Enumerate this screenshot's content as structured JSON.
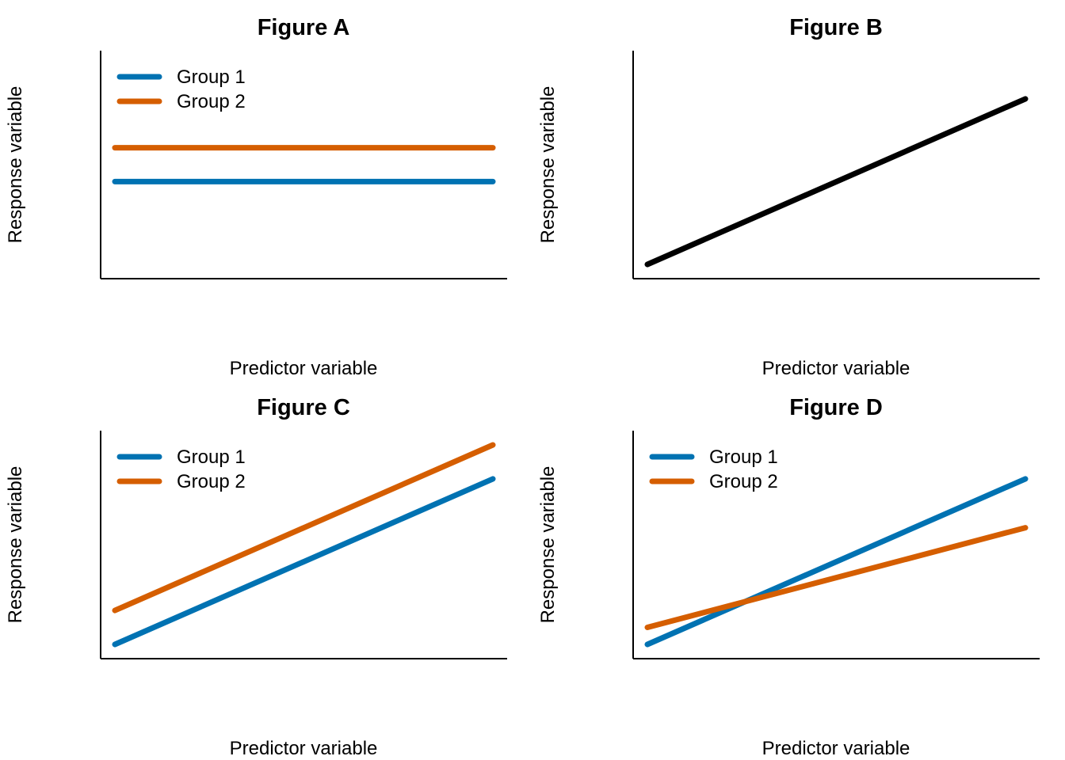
{
  "figure": {
    "colors": {
      "group1": "#0072B2",
      "group2": "#D55E00",
      "single": "#000000",
      "axis": "#000000"
    }
  },
  "chart_data": [
    {
      "type": "line",
      "title": "Figure A",
      "xlabel": "Predictor variable",
      "ylabel": "Response variable",
      "xlim": [
        0,
        1
      ],
      "ylim": [
        0,
        1
      ],
      "grid": false,
      "axis_ticks": false,
      "legend": {
        "placement": "top-left",
        "entries": [
          "Group 1",
          "Group 2"
        ]
      },
      "series": [
        {
          "name": "Group 1",
          "color": "#0072B2",
          "x": [
            0,
            1
          ],
          "y": [
            0.42,
            0.42
          ]
        },
        {
          "name": "Group 2",
          "color": "#D55E00",
          "x": [
            0,
            1
          ],
          "y": [
            0.58,
            0.58
          ]
        }
      ]
    },
    {
      "type": "line",
      "title": "Figure B",
      "xlabel": "Predictor variable",
      "ylabel": "Response variable",
      "xlim": [
        0,
        1
      ],
      "ylim": [
        0,
        1
      ],
      "grid": false,
      "axis_ticks": false,
      "series": [
        {
          "color": "#000000",
          "x": [
            0,
            1
          ],
          "y": [
            0.03,
            0.81
          ]
        }
      ]
    },
    {
      "type": "line",
      "title": "Figure C",
      "xlabel": "Predictor variable",
      "ylabel": "Response variable",
      "xlim": [
        0,
        1
      ],
      "ylim": [
        0,
        1
      ],
      "grid": false,
      "axis_ticks": false,
      "legend": {
        "placement": "top-left",
        "entries": [
          "Group 1",
          "Group 2"
        ]
      },
      "series": [
        {
          "name": "Group 1",
          "color": "#0072B2",
          "x": [
            0,
            1
          ],
          "y": [
            0.03,
            0.81
          ]
        },
        {
          "name": "Group 2",
          "color": "#D55E00",
          "x": [
            0,
            1
          ],
          "y": [
            0.19,
            0.97
          ]
        }
      ]
    },
    {
      "type": "line",
      "title": "Figure D",
      "xlabel": "Predictor variable",
      "ylabel": "Response variable",
      "xlim": [
        0,
        1
      ],
      "ylim": [
        0,
        1
      ],
      "grid": false,
      "axis_ticks": false,
      "legend": {
        "placement": "top-left",
        "entries": [
          "Group 1",
          "Group 2"
        ]
      },
      "series": [
        {
          "name": "Group 1",
          "color": "#0072B2",
          "x": [
            0,
            1
          ],
          "y": [
            0.03,
            0.81
          ]
        },
        {
          "name": "Group 2",
          "color": "#D55E00",
          "x": [
            0,
            1
          ],
          "y": [
            0.11,
            0.58
          ]
        }
      ]
    }
  ]
}
